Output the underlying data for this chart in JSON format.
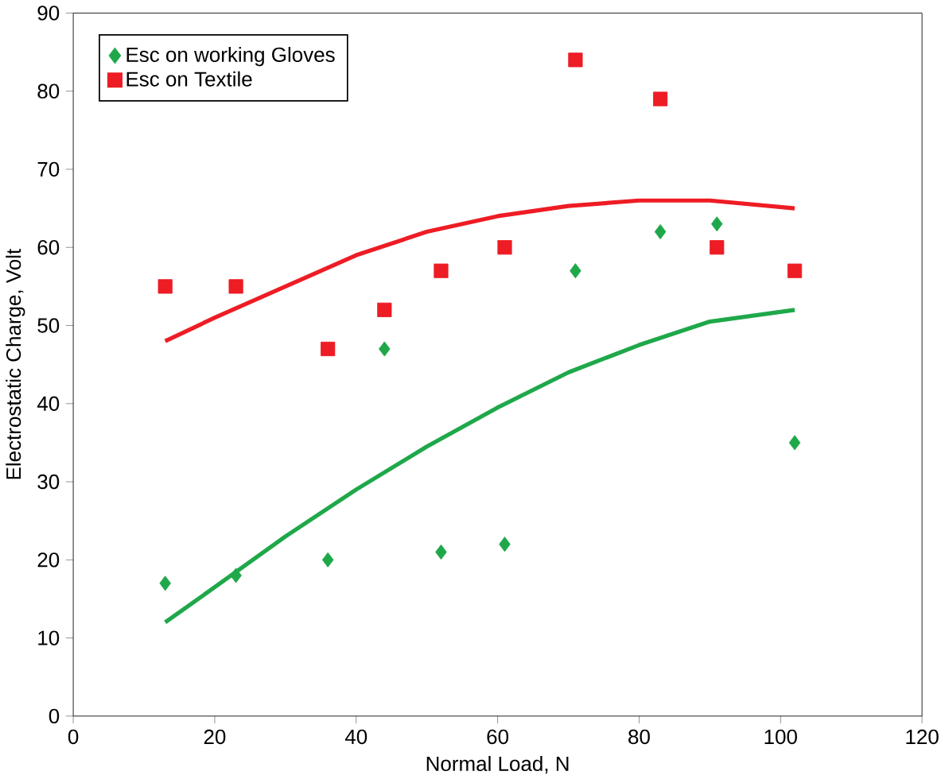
{
  "chart_data": {
    "type": "scatter",
    "xlabel": "Normal Load, N",
    "ylabel": "Electrostatic Charge, Volt",
    "xlim": [
      0,
      120
    ],
    "ylim": [
      0,
      90
    ],
    "xticks": [
      0,
      20,
      40,
      60,
      80,
      100,
      120
    ],
    "yticks": [
      0,
      10,
      20,
      30,
      40,
      50,
      60,
      70,
      80,
      90
    ],
    "grid": false,
    "legend": "top left",
    "series": [
      {
        "type": "line",
        "color": "#ee1c24",
        "marker": "none",
        "line_style": "solid",
        "x": [
          13,
          20,
          30,
          40,
          50,
          60,
          70,
          80,
          90,
          102
        ],
        "values": [
          48,
          51,
          55,
          59,
          62,
          64,
          65.3,
          66,
          66,
          65
        ]
      },
      {
        "type": "line",
        "color": "#1fa84a",
        "marker": "none",
        "line_style": "solid",
        "x": [
          13,
          20,
          30,
          40,
          50,
          60,
          70,
          80,
          90,
          102
        ],
        "values": [
          12,
          16.5,
          23,
          29,
          34.5,
          39.5,
          44,
          47.5,
          50.5,
          52
        ]
      },
      {
        "name": "Esc on working Gloves",
        "color": "#1fa84a",
        "marker": "diamond",
        "x": [
          13,
          23,
          36,
          44,
          52,
          61,
          71,
          83,
          91,
          102
        ],
        "values": [
          17,
          18,
          20,
          47,
          21,
          22,
          57,
          62,
          63,
          35
        ]
      },
      {
        "name": "Esc on Textile",
        "color": "#ee1c24",
        "marker": "square",
        "x": [
          13,
          23,
          36,
          44,
          52,
          61,
          71,
          83,
          91,
          102
        ],
        "values": [
          55,
          55,
          47,
          52,
          57,
          60,
          84,
          79,
          60,
          57
        ]
      }
    ]
  }
}
